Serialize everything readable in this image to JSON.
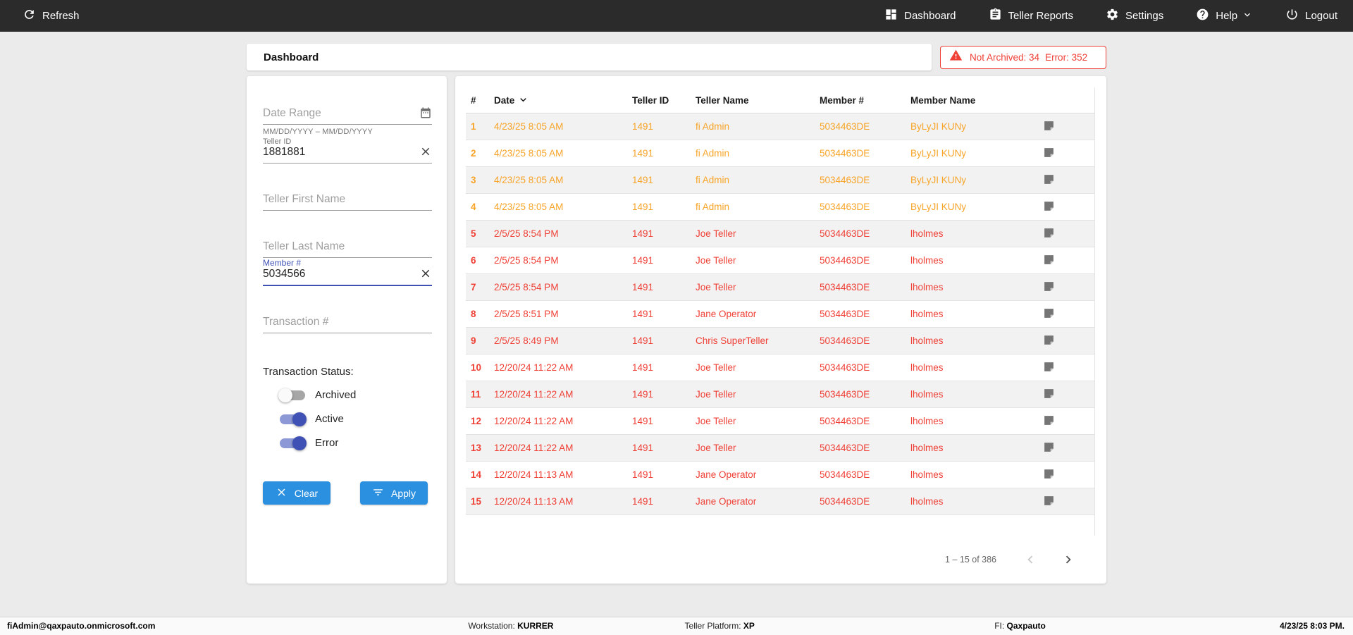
{
  "navbar": {
    "refresh_label": "Refresh",
    "items": [
      {
        "label": "Dashboard"
      },
      {
        "label": "Teller Reports"
      },
      {
        "label": "Settings"
      },
      {
        "label": "Help"
      },
      {
        "label": "Logout"
      }
    ]
  },
  "header": {
    "title": "Dashboard",
    "alert": {
      "not_archived": "Not Archived: 34",
      "error": "Error: 352"
    }
  },
  "filters": {
    "date_range": {
      "placeholder": "Date Range",
      "helper": "MM/DD/YYYY – MM/DD/YYYY"
    },
    "teller_id": {
      "label": "Teller ID",
      "value": "1881881"
    },
    "teller_first_name": {
      "placeholder": "Teller First Name"
    },
    "teller_last_name": {
      "placeholder": "Teller Last Name"
    },
    "member_number": {
      "label": "Member #",
      "value": "5034566"
    },
    "transaction_number": {
      "placeholder": "Transaction #"
    },
    "status_label": "Transaction Status:",
    "toggles": [
      {
        "label": "Archived",
        "on": false
      },
      {
        "label": "Active",
        "on": true
      },
      {
        "label": "Error",
        "on": true
      }
    ],
    "clear_label": "Clear",
    "apply_label": "Apply"
  },
  "table": {
    "columns": [
      "#",
      "Date",
      "Teller ID",
      "Teller Name",
      "Member #",
      "Member Name"
    ],
    "rows": [
      {
        "num": "1",
        "date": "4/23/25 8:05 AM",
        "teller_id": "1491",
        "teller_name": "fi Admin",
        "member_number": "5034463DE",
        "member_name": "ByLyJI KUNy",
        "status": "warn"
      },
      {
        "num": "2",
        "date": "4/23/25 8:05 AM",
        "teller_id": "1491",
        "teller_name": "fi Admin",
        "member_number": "5034463DE",
        "member_name": "ByLyJI KUNy",
        "status": "warn"
      },
      {
        "num": "3",
        "date": "4/23/25 8:05 AM",
        "teller_id": "1491",
        "teller_name": "fi Admin",
        "member_number": "5034463DE",
        "member_name": "ByLyJI KUNy",
        "status": "warn"
      },
      {
        "num": "4",
        "date": "4/23/25 8:05 AM",
        "teller_id": "1491",
        "teller_name": "fi Admin",
        "member_number": "5034463DE",
        "member_name": "ByLyJI KUNy",
        "status": "warn"
      },
      {
        "num": "5",
        "date": "2/5/25 8:54 PM",
        "teller_id": "1491",
        "teller_name": "Joe Teller",
        "member_number": "5034463DE",
        "member_name": "lholmes",
        "status": "error"
      },
      {
        "num": "6",
        "date": "2/5/25 8:54 PM",
        "teller_id": "1491",
        "teller_name": "Joe Teller",
        "member_number": "5034463DE",
        "member_name": "lholmes",
        "status": "error"
      },
      {
        "num": "7",
        "date": "2/5/25 8:54 PM",
        "teller_id": "1491",
        "teller_name": "Joe Teller",
        "member_number": "5034463DE",
        "member_name": "lholmes",
        "status": "error"
      },
      {
        "num": "8",
        "date": "2/5/25 8:51 PM",
        "teller_id": "1491",
        "teller_name": "Jane Operator",
        "member_number": "5034463DE",
        "member_name": "lholmes",
        "status": "error"
      },
      {
        "num": "9",
        "date": "2/5/25 8:49 PM",
        "teller_id": "1491",
        "teller_name": "Chris SuperTeller",
        "member_number": "5034463DE",
        "member_name": "lholmes",
        "status": "error"
      },
      {
        "num": "10",
        "date": "12/20/24 11:22 AM",
        "teller_id": "1491",
        "teller_name": "Joe Teller",
        "member_number": "5034463DE",
        "member_name": "lholmes",
        "status": "error"
      },
      {
        "num": "11",
        "date": "12/20/24 11:22 AM",
        "teller_id": "1491",
        "teller_name": "Joe Teller",
        "member_number": "5034463DE",
        "member_name": "lholmes",
        "status": "error"
      },
      {
        "num": "12",
        "date": "12/20/24 11:22 AM",
        "teller_id": "1491",
        "teller_name": "Joe Teller",
        "member_number": "5034463DE",
        "member_name": "lholmes",
        "status": "error"
      },
      {
        "num": "13",
        "date": "12/20/24 11:22 AM",
        "teller_id": "1491",
        "teller_name": "Joe Teller",
        "member_number": "5034463DE",
        "member_name": "lholmes",
        "status": "error"
      },
      {
        "num": "14",
        "date": "12/20/24 11:13 AM",
        "teller_id": "1491",
        "teller_name": "Jane Operator",
        "member_number": "5034463DE",
        "member_name": "lholmes",
        "status": "error"
      },
      {
        "num": "15",
        "date": "12/20/24 11:13 AM",
        "teller_id": "1491",
        "teller_name": "Jane Operator",
        "member_number": "5034463DE",
        "member_name": "lholmes",
        "status": "error"
      }
    ],
    "pagination": {
      "range": "1 – 15 of 386"
    }
  },
  "footer": {
    "email": "fiAdmin@qaxpauto.onmicrosoft.com",
    "workstation_label": "Workstation:",
    "workstation": "KURRER",
    "platform_label": "Teller Platform:",
    "platform": "XP",
    "fi_label": "FI:",
    "fi": "Qaxpauto",
    "datetime": "4/23/25 8:03 PM."
  },
  "colors": {
    "warning_orange": "#f7a428",
    "error_red": "#ef4036",
    "button_blue": "#2b90e0",
    "toggle_indigo": "#3f51b5",
    "navbar_dark": "#2b2b2b"
  }
}
